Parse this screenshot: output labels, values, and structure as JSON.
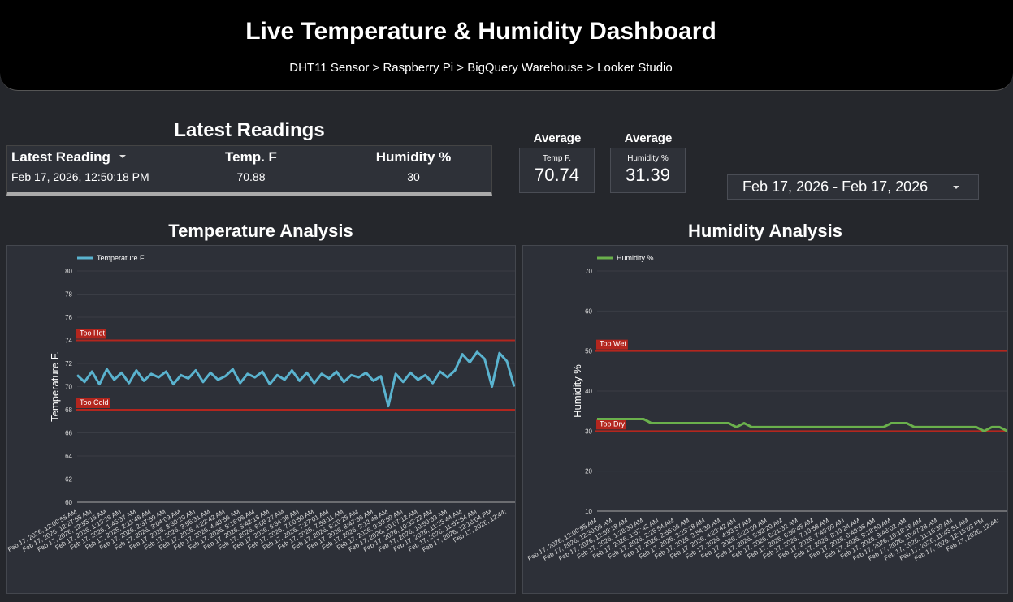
{
  "header": {
    "title": "Live Temperature & Humidity Dashboard",
    "subtitle": "DHT11 Sensor > Raspberry Pi > BigQuery Warehouse > Looker Studio"
  },
  "readings": {
    "title": "Latest Readings",
    "columns": [
      "Latest Reading",
      "Temp. F",
      "Humidity %"
    ],
    "rows": [
      [
        "Feb 17, 2026, 12:50:18 PM",
        70.88,
        30
      ]
    ]
  },
  "kpis": [
    {
      "title": "Average",
      "label": "Temp F.",
      "value": 70.74
    },
    {
      "title": "Average",
      "label": "Humidity %",
      "value": 31.39
    }
  ],
  "date_range": "Feb 17, 2026 - Feb 17, 2026",
  "chart_data": [
    {
      "type": "line",
      "title": "Temperature Analysis",
      "y_label": "Temperature F.",
      "categories": [
        "Feb 17, 2026, 12:00:55 AM",
        null,
        "Feb 17, 2026, 12:27:55 AM",
        null,
        "Feb 17, 2026, 12:55:15 AM",
        null,
        "Feb 17, 2026, 1:19:26 AM",
        null,
        "Feb 17, 2026, 1:45:37 AM",
        null,
        "Feb 17, 2026, 2:11:46 AM",
        null,
        "Feb 17, 2026, 2:37:59 AM",
        null,
        "Feb 17, 2026, 3:04:09 AM",
        null,
        "Feb 17, 2026, 3:30:20 AM",
        null,
        "Feb 17, 2026, 3:56:31 AM",
        null,
        "Feb 17, 2026, 4:22:42 AM",
        null,
        "Feb 17, 2026, 4:49:56 AM",
        null,
        "Feb 17, 2026, 5:16:06 AM",
        null,
        "Feb 17, 2026, 5:42:16 AM",
        null,
        "Feb 17, 2026, 6:08:27 AM",
        null,
        "Feb 17, 2026, 6:34:38 AM",
        null,
        "Feb 17, 2026, 7:00:50 AM",
        null,
        "Feb 17, 2026, 7:27:01 AM",
        null,
        "Feb 17, 2026, 7:53:11 AM",
        null,
        "Feb 17, 2026, 8:20:25 AM",
        null,
        "Feb 17, 2026, 8:47:36 AM",
        null,
        "Feb 17, 2026, 9:13:48 AM",
        null,
        "Feb 17, 2026, 9:39:59 AM",
        null,
        "Feb 17, 2026, 10:07:12 AM",
        null,
        "Feb 17, 2026, 10:33:22 AM",
        null,
        "Feb 17, 2026, 10:59:33 AM",
        null,
        "Feb 17, 2026, 11:25:44 AM",
        null,
        "Feb 17, 2026, 11:51:54 AM",
        null,
        "Feb 17, 2026, 12:18:04 PM",
        null,
        "Feb 17, 2026, 12:44:",
        null
      ],
      "series": [
        {
          "name": "Temperature F.",
          "color": "#5ab3cf",
          "values": [
            71.0,
            70.4,
            71.3,
            70.2,
            71.5,
            70.6,
            71.2,
            70.3,
            71.4,
            70.5,
            71.1,
            70.8,
            71.3,
            70.2,
            71.0,
            70.7,
            71.4,
            70.4,
            71.2,
            70.6,
            70.9,
            71.5,
            70.3,
            71.1,
            70.8,
            71.3,
            70.2,
            71.0,
            70.6,
            71.4,
            70.5,
            71.2,
            70.3,
            71.1,
            70.7,
            71.3,
            70.4,
            71.0,
            70.8,
            71.2,
            70.5,
            70.9,
            68.3,
            71.1,
            70.4,
            71.2,
            70.6,
            71.0,
            70.3,
            71.3,
            70.8,
            71.4,
            72.8,
            72.1,
            73.0,
            72.4,
            70.0,
            72.9,
            72.2,
            70.0
          ]
        }
      ],
      "reference_lines": [
        {
          "label": "Too Hot",
          "value": 74,
          "color": "#b3261e"
        },
        {
          "label": "Too Cold",
          "value": 68,
          "color": "#b3261e"
        }
      ],
      "ylim": [
        60,
        80
      ],
      "yticks": [
        60,
        62,
        64,
        66,
        68,
        70,
        72,
        74,
        76,
        78,
        80
      ],
      "grid": true,
      "legend": "top-left"
    },
    {
      "type": "line",
      "title": "Humidity Analysis",
      "y_label": "Humidity %",
      "categories": [
        "Feb 17, 2026, 12:00:55 AM",
        null,
        "Feb 17, 2026, 12:30:06 AM",
        null,
        "Feb 17, 2026, 12:59:18 AM",
        null,
        "Feb 17, 2026, 1:28:30 AM",
        null,
        "Feb 17, 2026, 1:57:42 AM",
        null,
        "Feb 17, 2026, 2:26:54 AM",
        null,
        "Feb 17, 2026, 2:56:06 AM",
        null,
        "Feb 17, 2026, 3:25:18 AM",
        null,
        "Feb 17, 2026, 3:54:30 AM",
        null,
        "Feb 17, 2026, 4:23:42 AM",
        null,
        "Feb 17, 2026, 4:53:57 AM",
        null,
        "Feb 17, 2026, 5:23:09 AM",
        null,
        "Feb 17, 2026, 5:52:20 AM",
        null,
        "Feb 17, 2026, 6:21:32 AM",
        null,
        "Feb 17, 2026, 6:50:45 AM",
        null,
        "Feb 17, 2026, 7:19:58 AM",
        null,
        "Feb 17, 2026, 7:49:09 AM",
        null,
        "Feb 17, 2026, 8:19:24 AM",
        null,
        "Feb 17, 2026, 8:49:38 AM",
        null,
        "Feb 17, 2026, 9:18:50 AM",
        null,
        "Feb 17, 2026, 9:48:02 AM",
        null,
        "Feb 17, 2026, 10:18:16 AM",
        null,
        "Feb 17, 2026, 10:47:28 AM",
        null,
        "Feb 17, 2026, 11:16:39 AM",
        null,
        "Feb 17, 2026, 11:45:51 AM",
        null,
        "Feb 17, 2026, 12:15:03 PM",
        null,
        "Feb 17, 2026, 12:44:",
        null
      ],
      "series": [
        {
          "name": "Humidity %",
          "color": "#6ab04c",
          "values": [
            33,
            33,
            33,
            33,
            33,
            33,
            33,
            32,
            32,
            32,
            32,
            32,
            32,
            32,
            32,
            32,
            32,
            32,
            31,
            32,
            31,
            31,
            31,
            31,
            31,
            31,
            31,
            31,
            31,
            31,
            31,
            31,
            31,
            31,
            31,
            31,
            31,
            31,
            32,
            32,
            32,
            31,
            31,
            31,
            31,
            31,
            31,
            31,
            31,
            31,
            30,
            31,
            31,
            30
          ]
        }
      ],
      "reference_lines": [
        {
          "label": "Too Wet",
          "value": 50,
          "color": "#b3261e"
        },
        {
          "label": "Too Dry",
          "value": 30,
          "color": "#b3261e"
        }
      ],
      "ylim": [
        10,
        70
      ],
      "yticks": [
        10,
        20,
        30,
        40,
        50,
        60,
        70
      ],
      "grid": true,
      "legend": "top-left"
    }
  ]
}
